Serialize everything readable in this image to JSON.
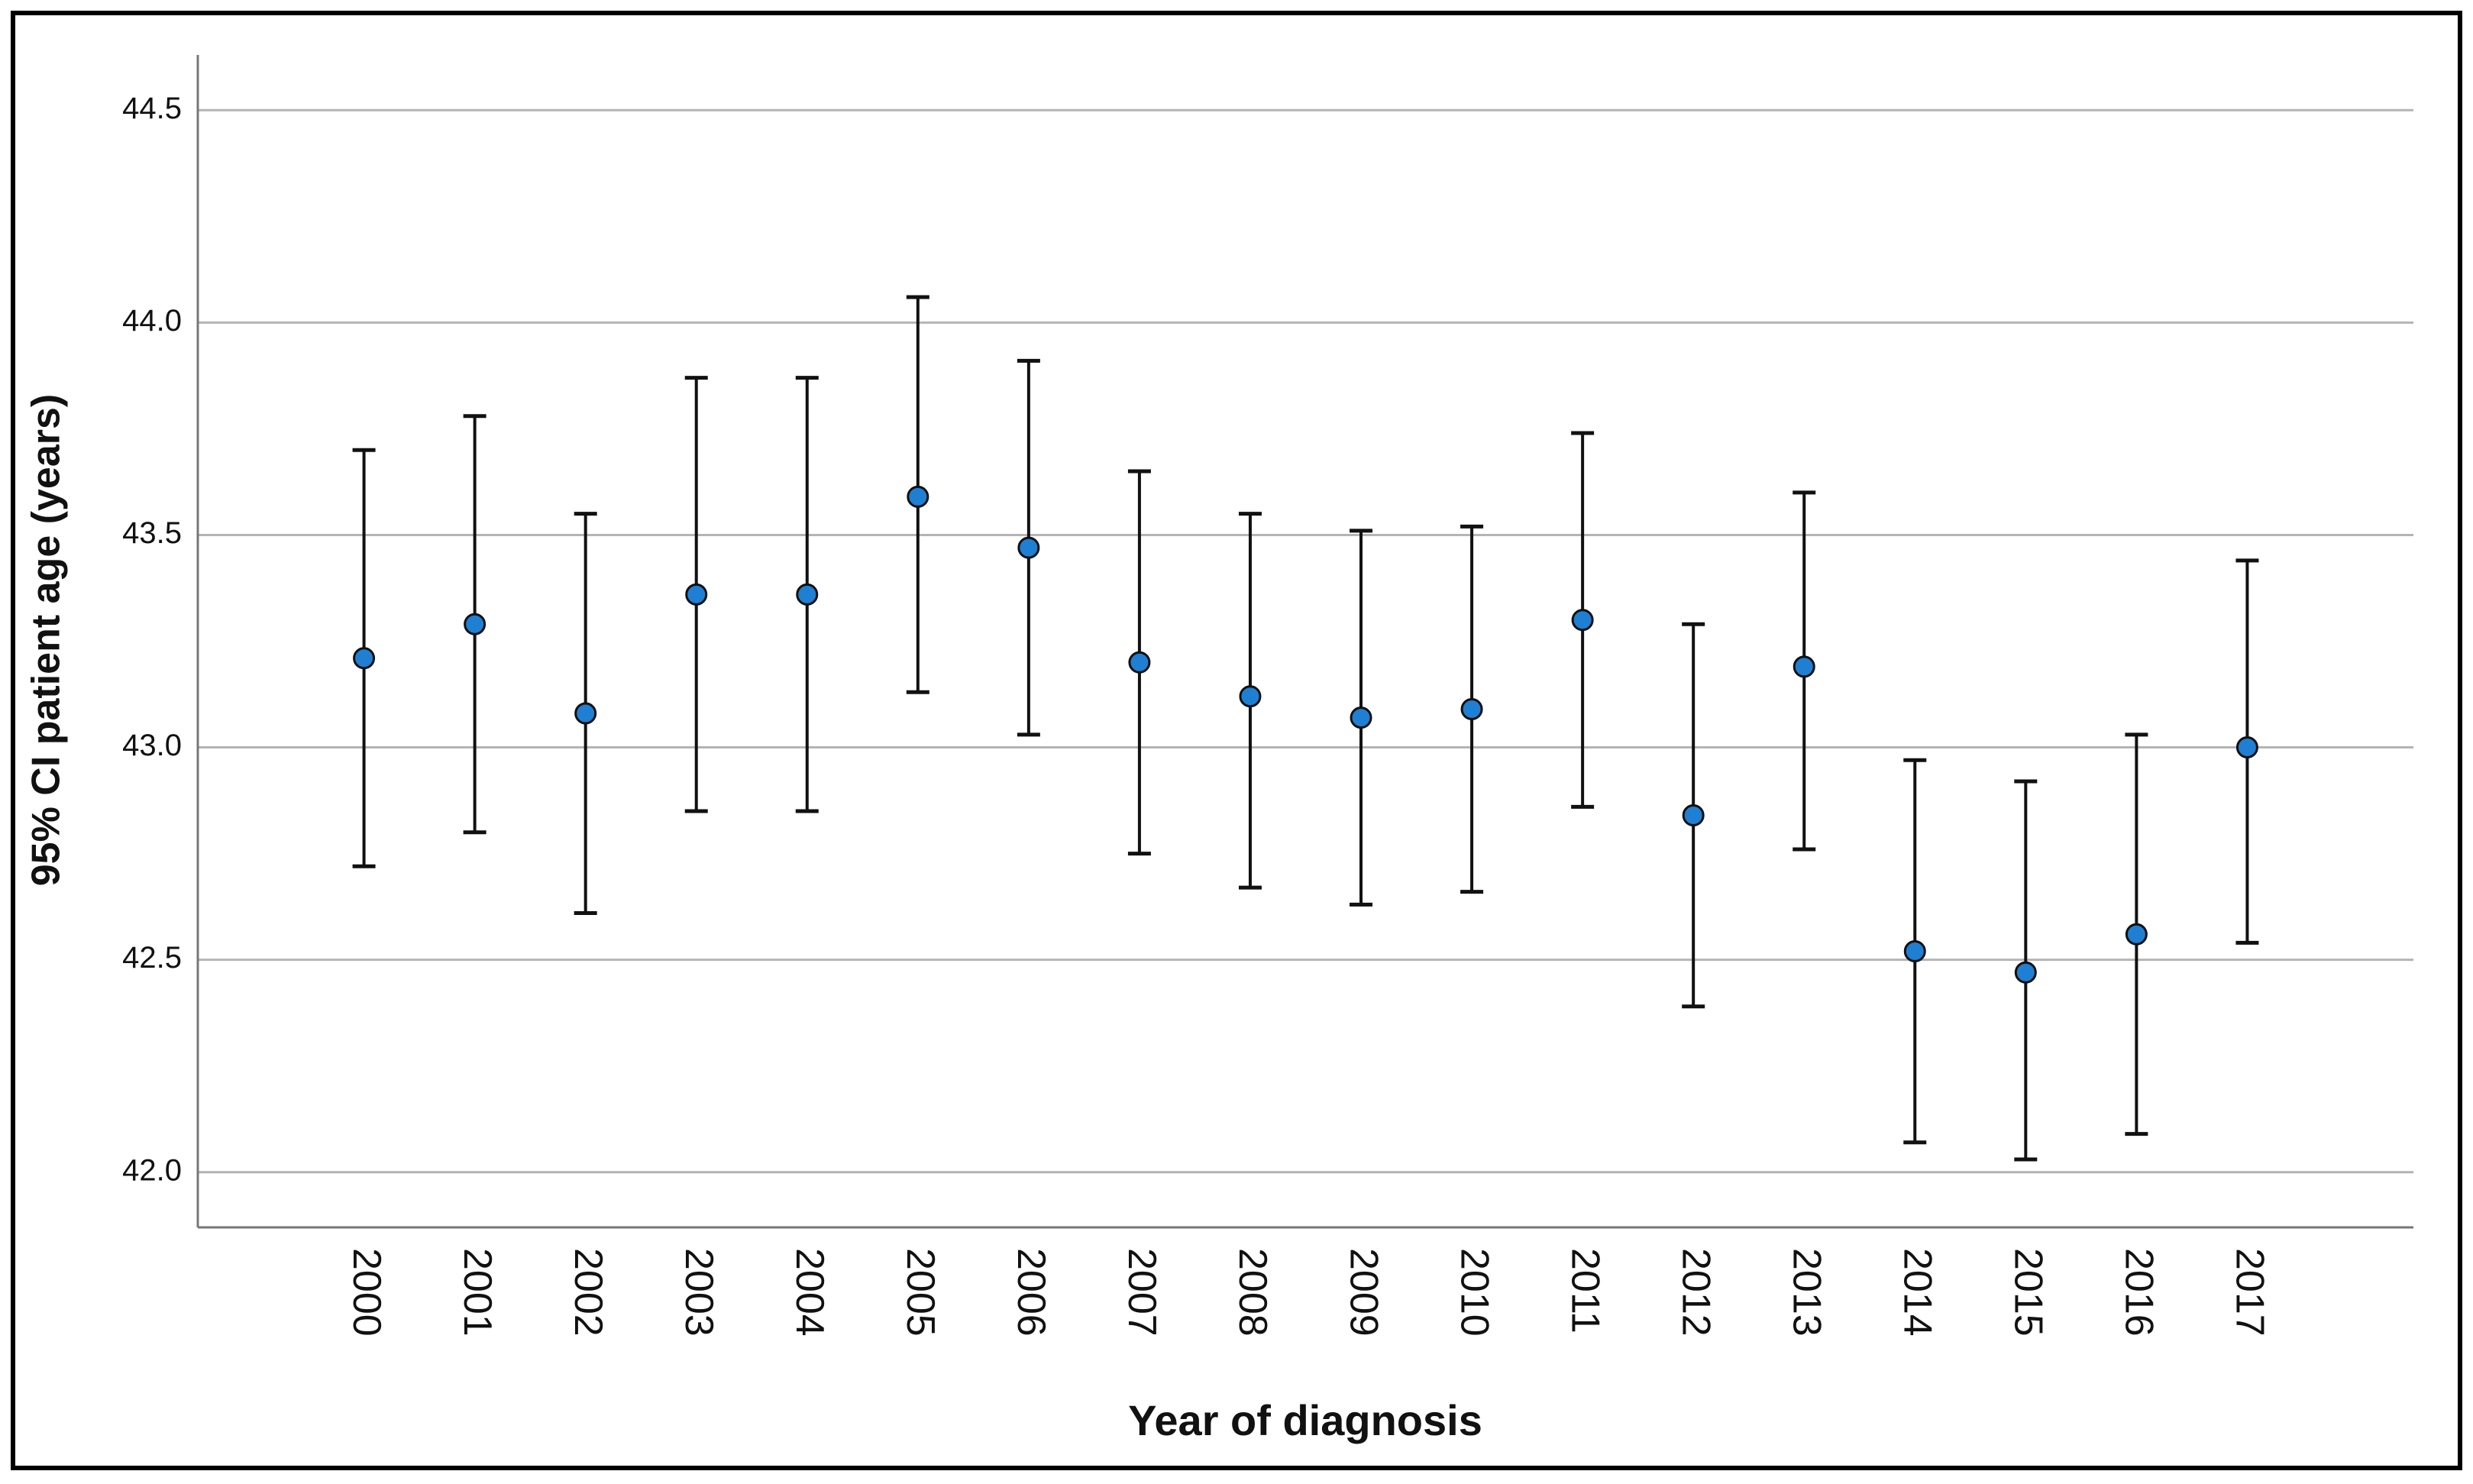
{
  "chart_data": {
    "type": "errorbar",
    "x_label": "Year of diagnosis",
    "y_label": "95% CI patient age (years)",
    "categories": [
      "2000",
      "2001",
      "2002",
      "2003",
      "2004",
      "2005",
      "2006",
      "2007",
      "2008",
      "2009",
      "2010",
      "2011",
      "2012",
      "2013",
      "2014",
      "2015",
      "2016",
      "2017"
    ],
    "values": [
      43.21,
      43.29,
      43.08,
      43.36,
      43.36,
      43.59,
      43.47,
      43.2,
      43.12,
      43.07,
      43.09,
      43.3,
      42.84,
      43.19,
      42.52,
      42.47,
      42.56,
      43.0
    ],
    "lower": [
      42.72,
      42.8,
      42.61,
      42.85,
      42.85,
      43.13,
      43.03,
      42.75,
      42.67,
      42.63,
      42.66,
      42.86,
      42.39,
      42.76,
      42.07,
      42.03,
      42.09,
      42.54
    ],
    "upper": [
      43.7,
      43.78,
      43.55,
      43.87,
      43.87,
      44.06,
      43.91,
      43.65,
      43.55,
      43.51,
      43.52,
      43.74,
      43.29,
      43.6,
      42.97,
      42.92,
      43.03,
      43.44
    ],
    "color": "#1f7fd3",
    "ylim": [
      41.87,
      44.63
    ],
    "yticks": [
      {
        "value": 42,
        "label": "42.0"
      },
      42.5,
      {
        "value": 43,
        "label": "43.0"
      },
      43.5,
      {
        "value": 44,
        "label": "44.0"
      },
      44.5
    ],
    "grid": true
  }
}
